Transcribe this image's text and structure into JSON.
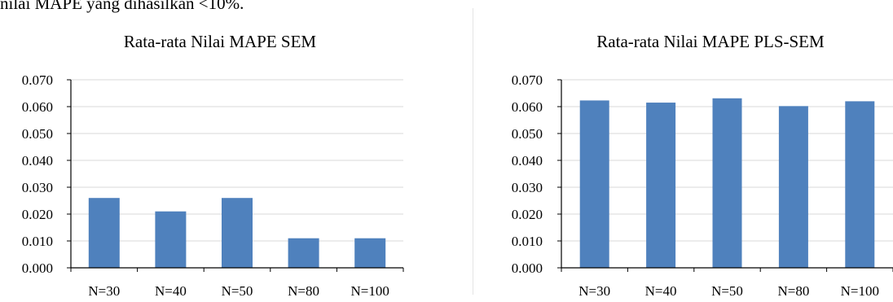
{
  "top_text": "nilai MAPE yang dihasilkan <10%.",
  "colors": {
    "bar": "#4f81bd",
    "grid": "#d9d9d9",
    "axis": "#000000"
  },
  "chart_data": [
    {
      "type": "bar",
      "title": "Rata-rata Nilai MAPE SEM",
      "categories": [
        "N=30",
        "N=40",
        "N=50",
        "N=80",
        "N=100"
      ],
      "values": [
        0.026,
        0.021,
        0.026,
        0.011,
        0.011
      ],
      "yticks": [
        "0.000",
        "0.010",
        "0.020",
        "0.030",
        "0.040",
        "0.050",
        "0.060",
        "0.070"
      ],
      "ylim": [
        0,
        0.07
      ],
      "grid": true,
      "legend": "none"
    },
    {
      "type": "bar",
      "title": "Rata-rata Nilai MAPE PLS-SEM",
      "categories": [
        "N=30",
        "N=40",
        "N=50",
        "N=80",
        "N=100"
      ],
      "values": [
        0.0623,
        0.0615,
        0.0631,
        0.0602,
        0.062
      ],
      "yticks": [
        "0.000",
        "0.010",
        "0.020",
        "0.030",
        "0.040",
        "0.050",
        "0.060",
        "0.070"
      ],
      "ylim": [
        0,
        0.07
      ],
      "grid": true,
      "legend": "none"
    }
  ]
}
